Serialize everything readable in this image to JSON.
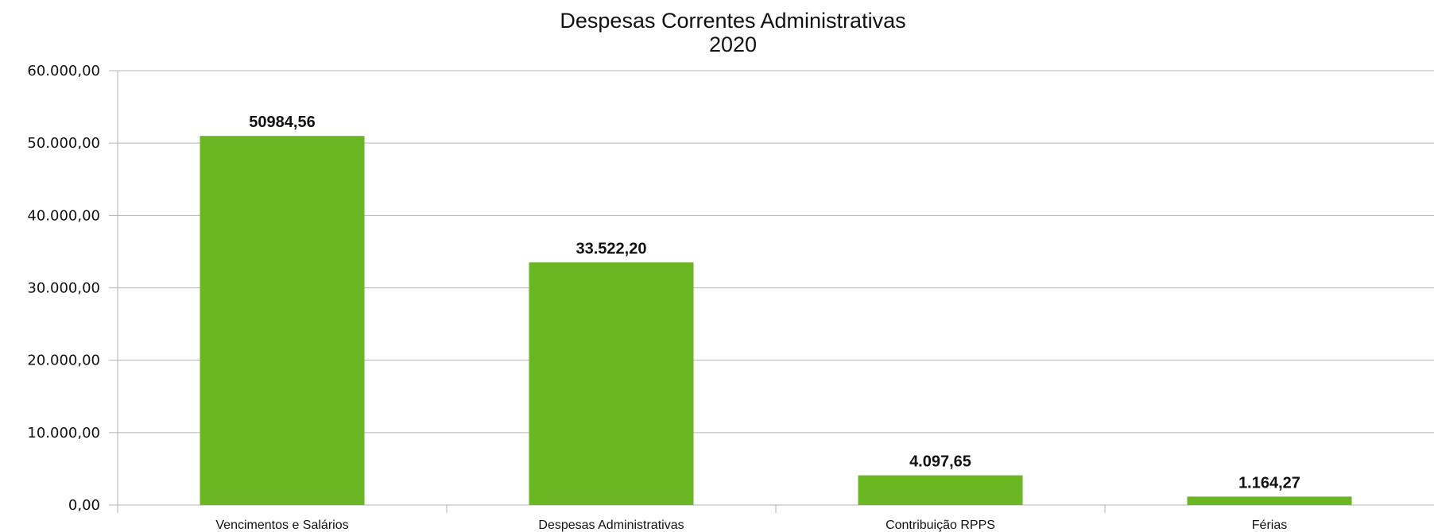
{
  "chart_data": {
    "type": "bar",
    "title": "Despesas Correntes Administrativas",
    "subtitle": "2020",
    "categories": [
      "Vencimentos e Salários",
      "Despesas Administrativas",
      "Contribuição RPPS",
      "Férias"
    ],
    "values": [
      50984.56,
      33522.2,
      4097.65,
      1164.27
    ],
    "data_labels": [
      "50984,56",
      "33.522,20",
      "4.097,65",
      "1.164,27"
    ],
    "y_ticks": [
      0,
      10000,
      20000,
      30000,
      40000,
      50000,
      60000
    ],
    "y_tick_labels": [
      "0,00",
      "10.000,00",
      "20.000,00",
      "30.000,00",
      "40.000,00",
      "50.000,00",
      "60.000,00"
    ],
    "ylim": [
      0,
      60000
    ],
    "grid": true,
    "legend": "none",
    "colors": {
      "bar": "#6ab623",
      "grid": "#b3b3b3"
    }
  }
}
